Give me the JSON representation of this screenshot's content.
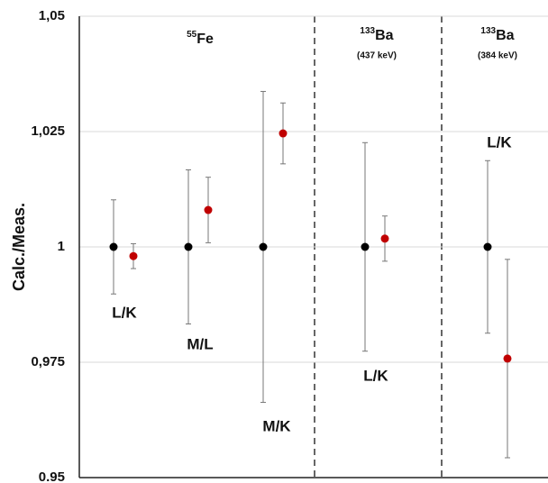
{
  "chart_data": {
    "type": "errorbar-dots",
    "ylabel": "Calc./Meas.",
    "categories": [
      "L/K",
      "M/L",
      "M/K",
      "L/K",
      "L/K"
    ],
    "series": [
      {
        "color": "#000000",
        "values": [
          1,
          1,
          1,
          1,
          1
        ],
        "errors": [
          0.0102,
          0.0167,
          0.0337,
          0.0226,
          0.0187
        ]
      },
      {
        "color": "#c00000",
        "values": [
          0.998,
          1.008,
          1.0246,
          1.0018,
          0.9758
        ],
        "errors": [
          0.0027,
          0.0071,
          0.0066,
          0.0049,
          0.0215
        ]
      }
    ],
    "groups": [
      {
        "mass": "55",
        "element": "Fe"
      },
      {
        "mass": "133",
        "element": "Ba",
        "energy": "(437 keV)"
      },
      {
        "mass": "133",
        "element": "Ba",
        "energy": "(384 keV)"
      }
    ],
    "ylim": [
      0.95,
      1.05
    ],
    "yticks": [
      {
        "value": 0.95,
        "label": "0.95"
      },
      {
        "value": 0.975,
        "label": "0,975"
      },
      1,
      {
        "value": 1.025,
        "label": "1,025"
      },
      {
        "value": 1.05,
        "label": "1,05"
      }
    ],
    "grid": true
  }
}
